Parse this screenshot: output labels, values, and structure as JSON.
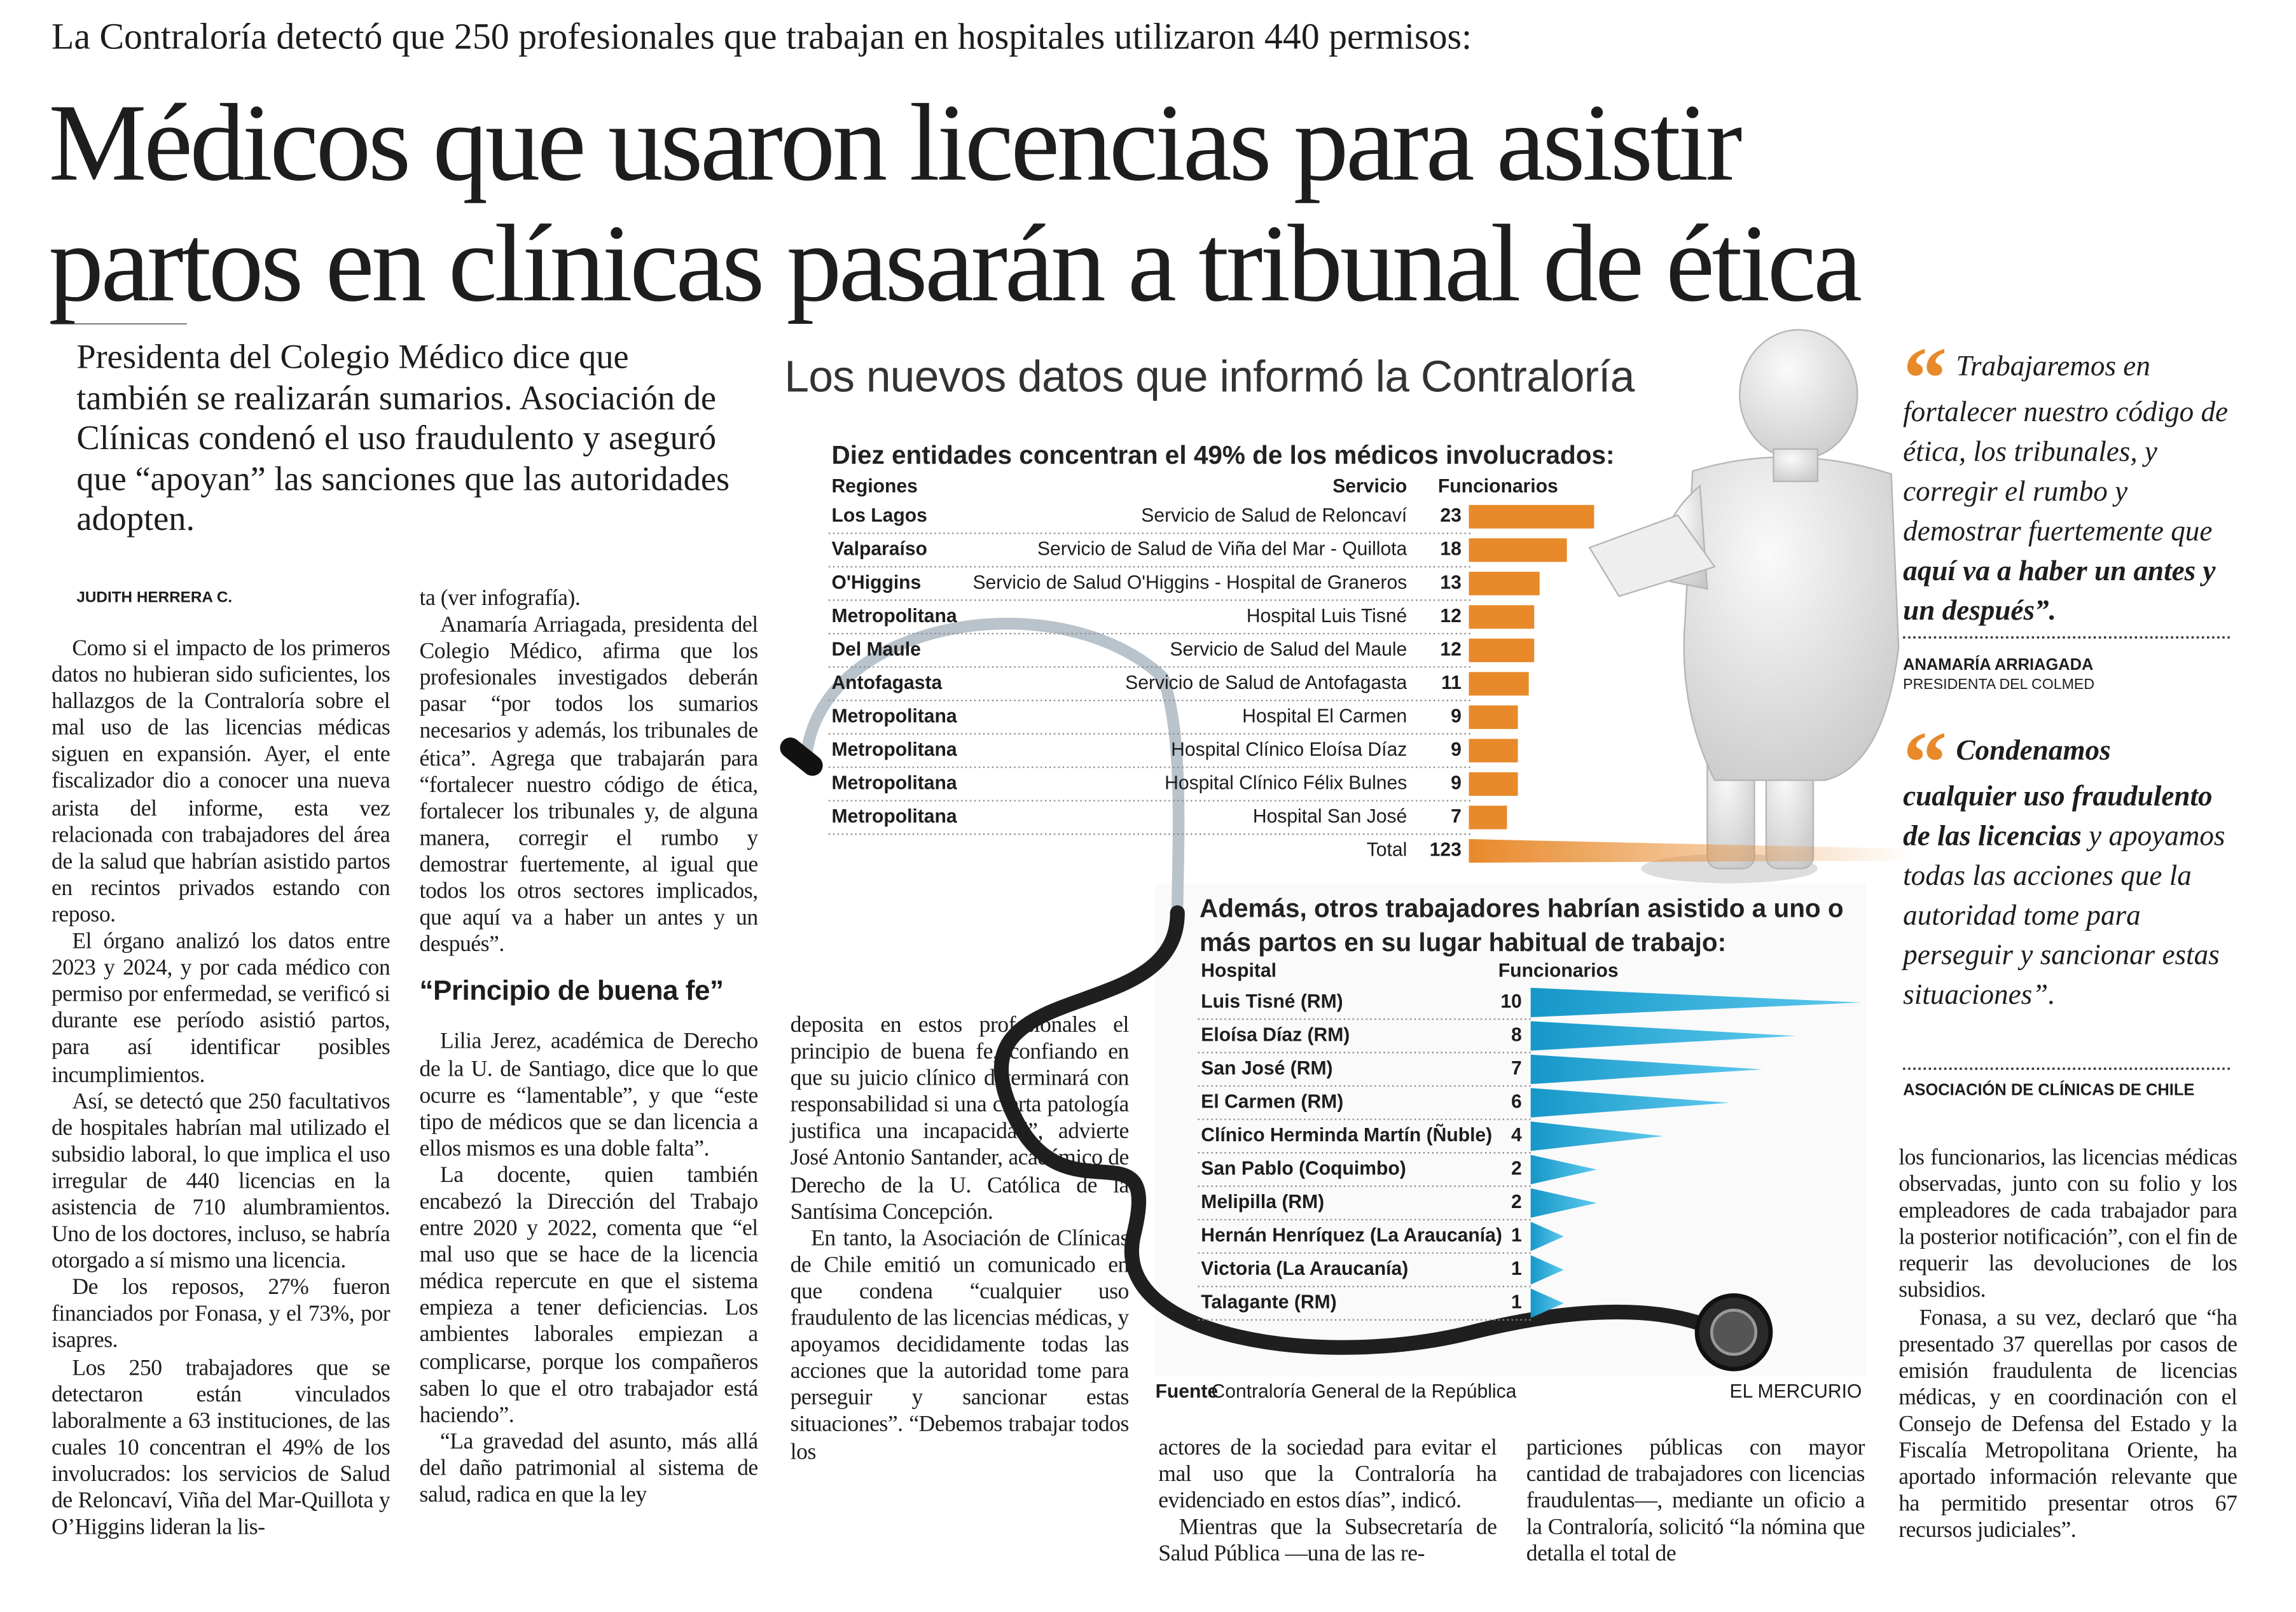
{
  "header": {
    "kicker": "La Contraloría detectó que 250 profesionales que trabajan en hospitales utilizaron 440 permisos:",
    "title_lines": [
      "Médicos que usaron licencias para asistir",
      "partos en clínicas pasarán a tribunal de ética"
    ],
    "lead": "Presidenta del Colegio Médico dice que también se realizarán sumarios. Asociación de Clínicas condenó el uso fraudulento y aseguró que “apoyan” las sanciones que las autoridades adopten."
  },
  "article": {
    "byline": "JUDITH HERRERA C.",
    "columns": [
      {
        "paragraphs": [
          "Como si el impacto de los primeros datos no hubieran sido suficientes, los hallazgos de la Contraloría sobre el mal uso de las licencias médicas siguen en expansión. Ayer, el ente fiscalizador dio a conocer una nueva arista del informe, esta vez relacionada con trabajadores del área de la salud que habrían asistido partos en recintos privados estando con reposo.",
          "El órgano analizó los datos entre 2023 y 2024, y por cada médico con permiso por enfermedad, se verificó si durante ese período asistió partos, para así identificar posibles incumplimientos.",
          "Así, se detectó que 250 facultativos de hospitales habrían mal utilizado el subsidio laboral, lo que implica el uso irregular de 440 licencias en la asistencia de 710 alumbramientos. Uno de los doctores, incluso, se habría otorgado a sí mismo una licencia.",
          "De los reposos, 27% fueron financiados por Fonasa, y el 73%, por isapres.",
          "Los 250 trabajadores que se detectaron están vinculados laboralmente a 63 instituciones, de las cuales 10 concentran el 49% de los involucrados: los servicios de Salud de Reloncaví, Viña del Mar-Quillota y O’Higgins lideran la lis-"
        ]
      },
      {
        "paragraphs": [
          "ta (ver infografía).",
          "Anamaría Arriagada, presidenta del Colegio Médico, afirma que los profesionales investigados deberán pasar “por todos los sumarios necesarios y además, los tribunales de ética”. Agrega que trabajarán para “fortalecer nuestro código de ética, fortalecer los tribunales y, de alguna manera, corregir el rumbo y demostrar fuertemente, al igual que todos los otros sectores implicados, que aquí va a haber un antes y un después”."
        ],
        "subhead": "“Principio de buena fe”",
        "paragraphs_after": [
          "Lilia Jerez, académica de Derecho de la U. de Santiago, dice que lo que ocurre es “lamentable”, y que “este tipo de médicos que se dan licencia a ellos mismos es una doble falta”.",
          "La docente, quien también encabezó la Dirección del Trabajo entre 2020 y 2022, comenta que “el mal uso que se hace de la licencia médica repercute en que el sistema empieza a tener deficiencias. Los ambientes laborales empiezan a complicarse, porque los compañeros saben lo que el otro trabajador está haciendo”.",
          "“La gravedad del asunto, más allá del daño patrimonial al sistema de salud, radica en que la ley"
        ]
      },
      {
        "paragraphs": [
          "deposita en estos profesionales el principio de buena fe, confiando en que su juicio clínico determinará con responsabilidad si una cierta patología justifica una incapacidad”, advierte José Antonio Santander, académico de Derecho de la U. Católica de la Santísima Concepción.",
          "En tanto, la Asociación de Clínicas de Chile emitió un comunicado en que condena “cualquier uso fraudulento de las licencias médicas, y apoyamos decididamente todas las acciones que la autoridad tome para perseguir y sancionar estas situaciones”. “Debemos trabajar todos los"
        ]
      },
      {
        "paragraphs": [
          "actores de la sociedad para evitar el mal uso que la Contraloría ha evidenciado en estos días”, indicó.",
          "Mientras que la Subsecretaría de Salud Pública —una de las re-"
        ]
      },
      {
        "paragraphs": [
          "particiones públicas con mayor cantidad de trabajadores con licencias fraudulentas—, mediante un oficio a la Contraloría, solicitó “la nómina que detalla el total de"
        ]
      },
      {
        "paragraphs": [
          "los funcionarios, las licencias médicas observadas, junto con su folio y los empleadores de cada trabajador para la posterior notificación”, con el fin de requerir las devoluciones de los subsidios.",
          "Fonasa, a su vez, declaró que “ha presentado 37 querellas por casos de emisión fraudulenta de licencias médicas, y en coordinación con el Consejo de Defensa del Estado y la Fiscalía Metropolitana Oriente, ha aportado información relevante que ha permitido presentar otros 67 recursos judiciales”."
        ]
      }
    ]
  },
  "quotes": [
    {
      "parts": [
        {
          "text": "Trabajaremos en fortalecer nuestro código de ética, los tribunales, y corregir el rumbo y demostrar fuertemente que ",
          "bold": false
        },
        {
          "text": "aquí va a haber un antes y un después”.",
          "bold": true
        }
      ],
      "author": "ANAMARÍA ARRIAGADA",
      "role": "PRESIDENTA DEL COLMED"
    },
    {
      "parts": [
        {
          "text": "Condenamos cualquier uso fraudulento de las licencias",
          "bold": true
        },
        {
          "text": " y apoyamos todas las acciones que la autoridad tome para perseguir y sancionar estas situaciones”.",
          "bold": false
        }
      ],
      "author": "ASOCIACIÓN DE CLÍNICAS DE CHILE"
    }
  ],
  "infographic": {
    "title": "Los nuevos datos que informó la Contraloría",
    "chart1": {
      "title": "Diez entidades concentran el 49% de los médicos involucrados:",
      "headers": [
        "Regiones",
        "Servicio",
        "Funcionarios"
      ],
      "color": "#e8892a",
      "regions": [
        "Los Lagos",
        "Valparaíso",
        "O'Higgins",
        "Metropolitana",
        "Del Maule",
        "Antofagasta",
        "Metropolitana",
        "Metropolitana",
        "Metropolitana",
        "Metropolitana"
      ],
      "services": [
        "Servicio de Salud de Reloncaví",
        "Servicio de Salud de Viña del Mar - Quillota",
        "Servicio de Salud O'Higgins - Hospital de Graneros",
        "Hospital Luis Tisné",
        "Servicio de Salud del Maule",
        "Servicio de Salud de Antofagasta",
        "Hospital El Carmen",
        "Hospital Clínico Eloísa Díaz",
        "Hospital Clínico Félix Bulnes",
        "Hospital San José"
      ],
      "values": [
        23,
        18,
        13,
        12,
        12,
        11,
        9,
        9,
        9,
        7
      ],
      "total_label": "Total",
      "total": 123
    },
    "chart2": {
      "title": "Además, otros trabajadores habrían asistido a uno o más partos en su lugar habitual de trabajo:",
      "headers": [
        "Hospital",
        "Funcionarios"
      ],
      "color": "#29a9d8",
      "categories": [
        "Luis Tisné (RM)",
        "Eloísa Díaz (RM)",
        "San José (RM)",
        "El Carmen (RM)",
        "Clínico Herminda Martín (Ñuble)",
        "San Pablo (Coquimbo)",
        "Melipilla (RM)",
        "Hernán Henríquez (La Araucanía)",
        "Victoria (La Araucanía)",
        "Talagante (RM)"
      ],
      "values": [
        10,
        8,
        7,
        6,
        4,
        2,
        2,
        1,
        1,
        1
      ]
    },
    "source_label": "Fuente",
    "source": "Contraloría General de la República",
    "credit": "EL MERCURIO"
  }
}
